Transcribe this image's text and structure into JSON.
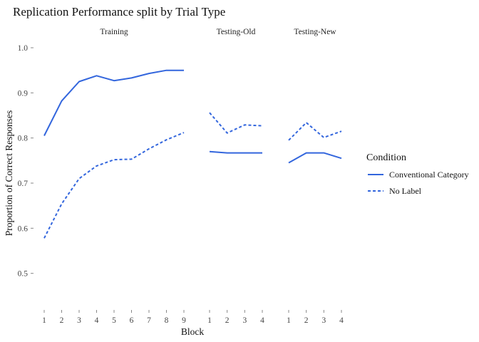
{
  "chart_data": {
    "type": "line",
    "title": "Replication Performance split by Trial Type",
    "xlabel": "Block",
    "ylabel": "Proportion of Correct Responses",
    "ylim": [
      0.43,
      1.03
    ],
    "yticks": [
      0.5,
      0.6,
      0.7,
      0.8,
      0.9,
      1.0
    ],
    "ytick_labels": [
      "0.5",
      "0.6",
      "0.7",
      "0.8",
      "0.9",
      "1.0"
    ],
    "grid": false,
    "legend": {
      "title": "Condition",
      "position": "right",
      "entries": [
        {
          "label": "Conventional Category",
          "linestyle": "solid"
        },
        {
          "label": "No Label",
          "linestyle": "dashed"
        }
      ]
    },
    "colors": {
      "line": "#3366dd"
    },
    "panels": [
      {
        "label": "Training",
        "x": [
          1,
          2,
          3,
          4,
          5,
          6,
          7,
          8,
          9
        ],
        "series": [
          {
            "name": "Conventional Category",
            "values": [
              0.805,
              0.882,
              0.925,
              0.938,
              0.927,
              0.933,
              0.943,
              0.95,
              0.95
            ]
          },
          {
            "name": "No Label",
            "values": [
              0.578,
              0.654,
              0.71,
              0.738,
              0.752,
              0.753,
              0.776,
              0.796,
              0.812
            ]
          }
        ]
      },
      {
        "label": "Testing-Old",
        "x": [
          1,
          2,
          3,
          4
        ],
        "series": [
          {
            "name": "Conventional Category",
            "values": [
              0.77,
              0.767,
              0.767,
              0.767
            ]
          },
          {
            "name": "No Label",
            "values": [
              0.856,
              0.811,
              0.829,
              0.827
            ]
          }
        ]
      },
      {
        "label": "Testing-New",
        "x": [
          1,
          2,
          3,
          4
        ],
        "series": [
          {
            "name": "Conventional Category",
            "values": [
              0.745,
              0.767,
              0.767,
              0.755
            ]
          },
          {
            "name": "No Label",
            "values": [
              0.795,
              0.834,
              0.801,
              0.815
            ]
          }
        ]
      }
    ]
  }
}
